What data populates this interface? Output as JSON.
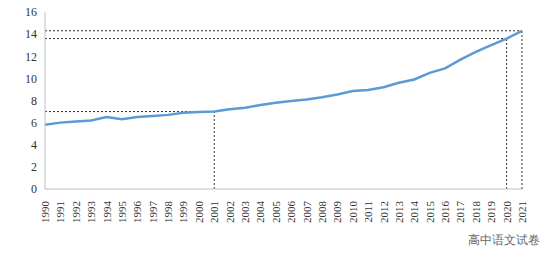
{
  "chart_data": {
    "type": "line",
    "categories": [
      "1990",
      "1991",
      "1992",
      "1993",
      "1994",
      "1995",
      "1996",
      "1997",
      "1998",
      "1999",
      "2000",
      "2001",
      "2002",
      "2003",
      "2004",
      "2005",
      "2006",
      "2007",
      "2008",
      "2009",
      "2010",
      "2011",
      "2012",
      "2013",
      "2014",
      "2015",
      "2016",
      "2017",
      "2018",
      "2019",
      "2020",
      "2021"
    ],
    "values": [
      5.8,
      6.0,
      6.1,
      6.2,
      6.5,
      6.3,
      6.5,
      6.6,
      6.7,
      6.9,
      6.95,
      7.0,
      7.2,
      7.35,
      7.6,
      7.8,
      7.95,
      8.1,
      8.3,
      8.55,
      8.85,
      8.95,
      9.2,
      9.6,
      9.9,
      10.5,
      10.9,
      11.7,
      12.4,
      13.0,
      13.6,
      14.3
    ],
    "color": "#5b9bd5",
    "ylim": [
      0,
      16
    ],
    "yticks": [
      0,
      2,
      4,
      6,
      8,
      10,
      12,
      14,
      16
    ],
    "grid": false,
    "reference_points": [
      {
        "x": "2001",
        "y": 7.0
      },
      {
        "x": "2020",
        "y": 13.6
      },
      {
        "x": "2021",
        "y": 14.3
      }
    ],
    "annotations": [
      "高中语文试卷"
    ]
  }
}
